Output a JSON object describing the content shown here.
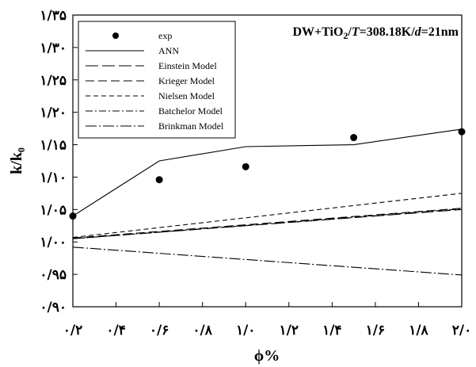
{
  "chart_data": {
    "type": "line",
    "xlabel": "ϕ%",
    "ylabel": "k/k₀",
    "xlim": [
      0.2,
      2.0
    ],
    "ylim": [
      0.9,
      1.35
    ],
    "x_ticks": [
      0.2,
      0.4,
      0.6,
      0.8,
      1.0,
      1.2,
      1.4,
      1.6,
      1.8,
      2.0
    ],
    "x_tick_labels": [
      "۰/۲",
      "۰/۴",
      "۰/۶",
      "۰/۸",
      "۱/۰",
      "۱/۲",
      "۱/۴",
      "۱/۶",
      "۱/۸",
      "۲/۰"
    ],
    "y_ticks": [
      0.9,
      0.95,
      1.0,
      1.05,
      1.1,
      1.15,
      1.2,
      1.25,
      1.3,
      1.35
    ],
    "y_tick_labels": [
      "۰/۹۰",
      "۰/۹۵",
      "۱/۰۰",
      "۱/۰۵",
      "۱/۱۰",
      "۱/۱۵",
      "۱/۲۰",
      "۱/۲۵",
      "۱/۳۰",
      "۱/۳۵"
    ],
    "annotation": {
      "prefix": "DW+TiO",
      "sub": "2",
      "sep1": "/",
      "t_var": "T",
      "t_val": "=308.18K/",
      "d_var": "d",
      "d_val": "=21nm"
    },
    "legend_position": "top-left",
    "series": [
      {
        "name": "exp",
        "style": "marker",
        "x": [
          0.2,
          0.6,
          1.0,
          1.5,
          2.0
        ],
        "y": [
          1.04,
          1.096,
          1.116,
          1.161,
          1.17
        ]
      },
      {
        "name": "ANN",
        "style": "solid",
        "x": [
          0.2,
          0.6,
          1.0,
          1.5,
          2.0
        ],
        "y": [
          1.04,
          1.125,
          1.147,
          1.15,
          1.174
        ]
      },
      {
        "name": "Einstein Model",
        "style": "long-dash",
        "x": [
          0.2,
          2.0
        ],
        "y": [
          1.005,
          1.05
        ]
      },
      {
        "name": "Krieger Model",
        "style": "medium-dash",
        "x": [
          0.2,
          2.0
        ],
        "y": [
          1.006,
          1.052
        ]
      },
      {
        "name": "Nielsen Model",
        "style": "short-dash",
        "x": [
          0.2,
          2.0
        ],
        "y": [
          1.007,
          1.075
        ]
      },
      {
        "name": "Batchelor Model",
        "style": "dash-dot",
        "x": [
          0.2,
          2.0
        ],
        "y": [
          1.005,
          1.051
        ]
      },
      {
        "name": "Brinkman Model",
        "style": "long-dash-dot",
        "x": [
          0.2,
          2.0
        ],
        "y": [
          0.992,
          0.949
        ]
      }
    ]
  }
}
